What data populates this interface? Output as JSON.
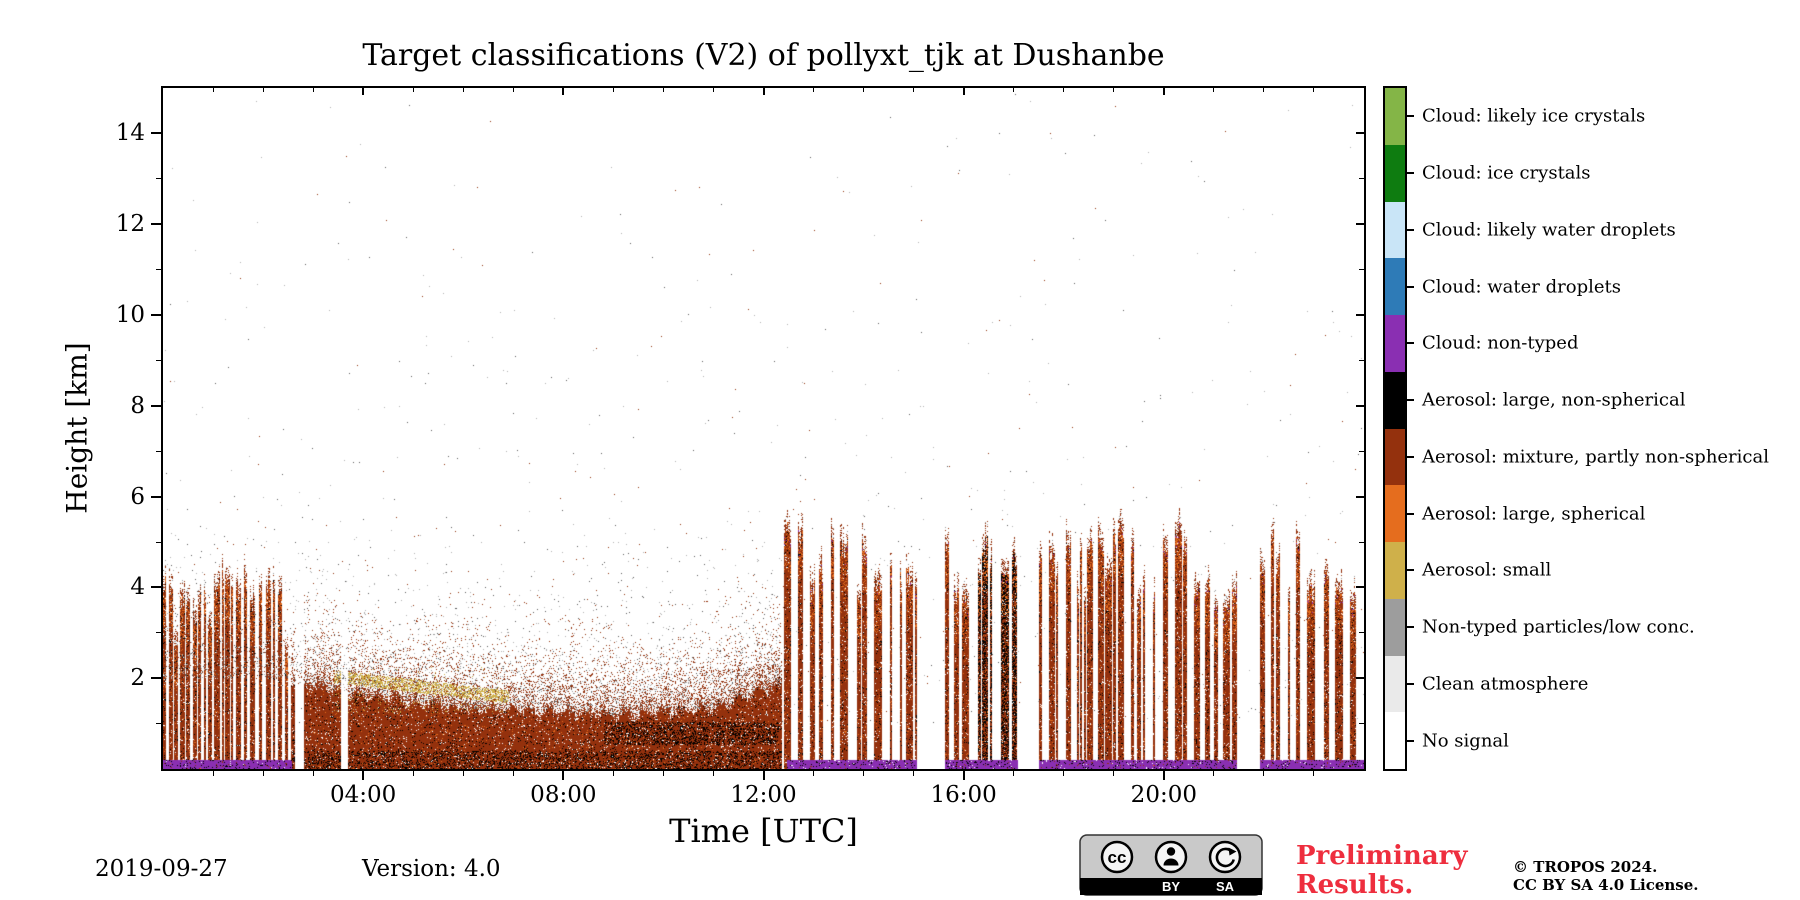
{
  "chart_data": {
    "type": "heatmap",
    "subtype": "time-height-target-classification",
    "title": "Target classifications (V2) of pollyxt_tjk at Dushanbe",
    "xlabel": "Time [UTC]",
    "ylabel": "Height [km]",
    "xlim_hours": [
      0,
      24
    ],
    "ylim_km": [
      0,
      15
    ],
    "x_major_tick_hours": [
      4,
      8,
      12,
      16,
      20
    ],
    "x_major_tick_labels": [
      "04:00",
      "08:00",
      "12:00",
      "16:00",
      "20:00"
    ],
    "x_minor_tick_interval_hours": 1,
    "y_major_ticks_km": [
      2,
      4,
      6,
      8,
      10,
      12,
      14
    ],
    "y_minor_tick_interval_km": 1,
    "grid": false,
    "legend_position": "right-colorbar",
    "categories": [
      {
        "key": "cloud_ice_likely",
        "label": "Cloud: likely ice crystals",
        "color": "#84b547"
      },
      {
        "key": "cloud_ice",
        "label": "Cloud: ice crystals",
        "color": "#0e7c10"
      },
      {
        "key": "cloud_water_likely",
        "label": "Cloud: likely water droplets",
        "color": "#c9e5f7"
      },
      {
        "key": "cloud_water",
        "label": "Cloud: water droplets",
        "color": "#2e7bb7"
      },
      {
        "key": "cloud_nontyped",
        "label": "Cloud: non-typed",
        "color": "#8a2fb2"
      },
      {
        "key": "aerosol_large_nonspherical",
        "label": "Aerosol: large, non-spherical",
        "color": "#000000"
      },
      {
        "key": "aerosol_mixture",
        "label": "Aerosol: mixture, partly non-spherical",
        "color": "#94310d"
      },
      {
        "key": "aerosol_large_spherical",
        "label": "Aerosol: large, spherical",
        "color": "#e56d1e"
      },
      {
        "key": "aerosol_small",
        "label": "Aerosol: small",
        "color": "#cfb04a"
      },
      {
        "key": "nontyped_low",
        "label": "Non-typed particles/low conc.",
        "color": "#9d9d9d"
      },
      {
        "key": "clean",
        "label": "Clean atmosphere",
        "color": "#eaeaea"
      },
      {
        "key": "no_signal",
        "label": "No signal",
        "color": "#ffffff"
      }
    ],
    "render": {
      "seed": 1337,
      "early_end": 2.55,
      "stripe_start": 12.35,
      "mid_gaps": [
        [
          2.62,
          2.8
        ],
        [
          3.55,
          3.68
        ]
      ],
      "wide_gaps": [
        [
          15.05,
          15.62
        ],
        [
          17.08,
          17.5
        ],
        [
          21.45,
          21.92
        ]
      ],
      "purple_ranges": [
        [
          0.0,
          2.56
        ],
        [
          12.45,
          15.05
        ],
        [
          15.62,
          17.08
        ],
        [
          17.5,
          21.45
        ],
        [
          21.92,
          24.0
        ]
      ],
      "dark_cluster": [
        [
          16.25,
          17.05
        ]
      ],
      "dense_profile": [
        [
          2.55,
          1.9
        ],
        [
          4.0,
          1.65
        ],
        [
          6.0,
          1.35
        ],
        [
          9.0,
          1.2
        ],
        [
          11.0,
          1.35
        ],
        [
          12.35,
          1.9
        ]
      ],
      "dark_band": {
        "t0": 8.8,
        "t1": 12.3,
        "h0": 0.55,
        "h1": 1.05
      },
      "yellow_band": {
        "t0": 3.4,
        "t1": 6.9,
        "h0": 2.05,
        "slope": 0.13,
        "halfwidth": 0.14
      },
      "surface_layer_top_km": 0.18,
      "haze_top_km": 6.0,
      "max_column_top_km": 5.4
    }
  },
  "footer": {
    "date": "2019-09-27",
    "version": "Version: 4.0",
    "preliminary_line1": "Preliminary",
    "preliminary_line2": "Results.",
    "preliminary_color": "#ee2e3e",
    "credit_line1": "© TROPOS 2024.",
    "credit_line2": "CC BY SA 4.0 License.",
    "badge": {
      "cc": "cc",
      "by": "BY",
      "sa": "SA"
    }
  }
}
